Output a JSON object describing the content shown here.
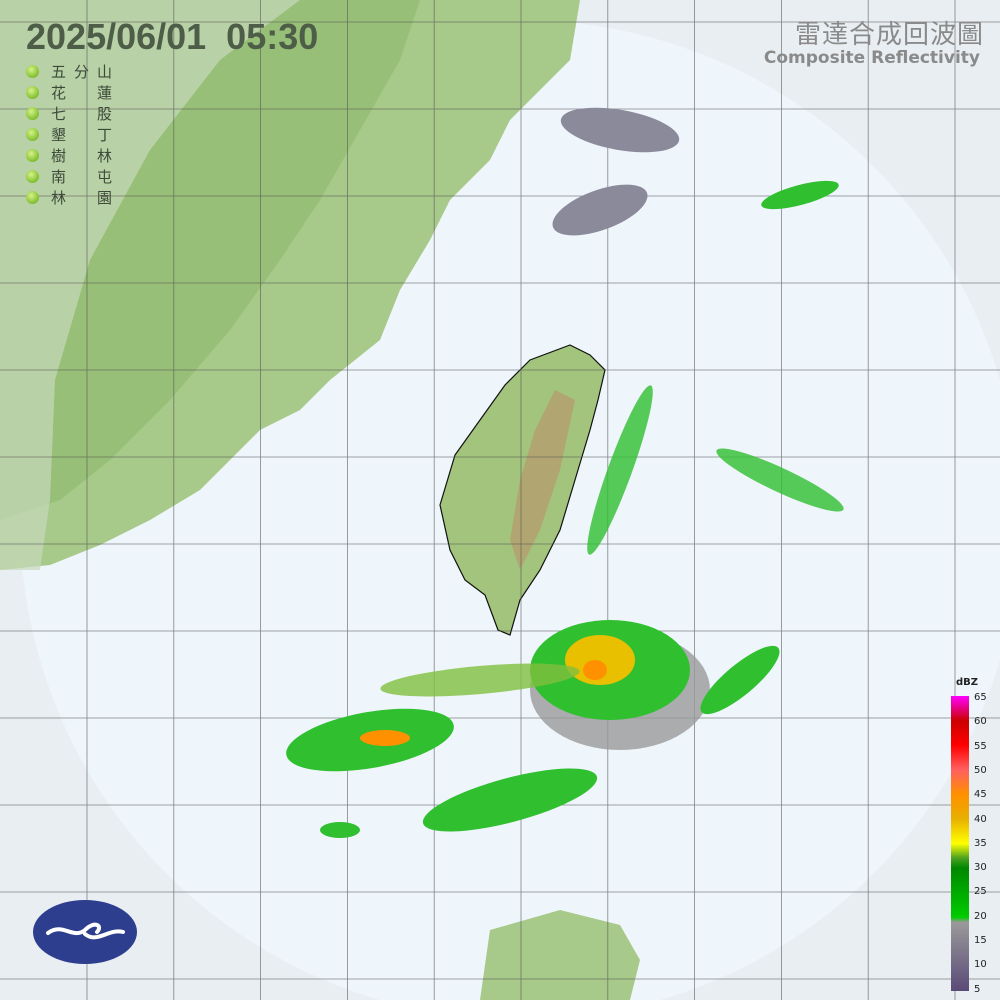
{
  "header": {
    "timestamp": "2025/06/01  05:30",
    "title_zh": "雷達合成回波圖",
    "title_en": "Composite Reflectivity"
  },
  "stations": [
    {
      "name": "五分山",
      "chars": [
        "五",
        "分",
        "山"
      ]
    },
    {
      "name": "花蓮",
      "chars": [
        "花",
        "",
        "蓮"
      ]
    },
    {
      "name": "七股",
      "chars": [
        "七",
        "",
        "股"
      ]
    },
    {
      "name": "墾丁",
      "chars": [
        "墾",
        "",
        "丁"
      ]
    },
    {
      "name": "樹林",
      "chars": [
        "樹",
        "",
        "林"
      ]
    },
    {
      "name": "南屯",
      "chars": [
        "南",
        "",
        "屯"
      ]
    },
    {
      "name": "林園",
      "chars": [
        "林",
        "",
        "園"
      ]
    }
  ],
  "station_status_color": "#8cc63a",
  "color_scale": {
    "unit": "dBZ",
    "ticks": [
      "65",
      "60",
      "55",
      "50",
      "45",
      "40",
      "35",
      "30",
      "25",
      "20",
      "15",
      "10",
      "5"
    ],
    "stops": [
      {
        "dbz": 65,
        "color": "#ff00ff"
      },
      {
        "dbz": 60,
        "color": "#cc0000"
      },
      {
        "dbz": 55,
        "color": "#ff0000"
      },
      {
        "dbz": 50,
        "color": "#ff6060"
      },
      {
        "dbz": 45,
        "color": "#ff9000"
      },
      {
        "dbz": 40,
        "color": "#e8b000"
      },
      {
        "dbz": 35,
        "color": "#ffff00"
      },
      {
        "dbz": 32,
        "color": "#4aa020"
      },
      {
        "dbz": 30,
        "color": "#008800"
      },
      {
        "dbz": 20,
        "color": "#00cc00"
      },
      {
        "dbz": 19,
        "color": "#9a9a9a"
      },
      {
        "dbz": 5,
        "color": "#5a4a78"
      }
    ]
  },
  "colors": {
    "sea": "#eef5fb",
    "land": "#9cc27a",
    "coverage": "#e4eef6"
  },
  "logo": "cwa-logo"
}
